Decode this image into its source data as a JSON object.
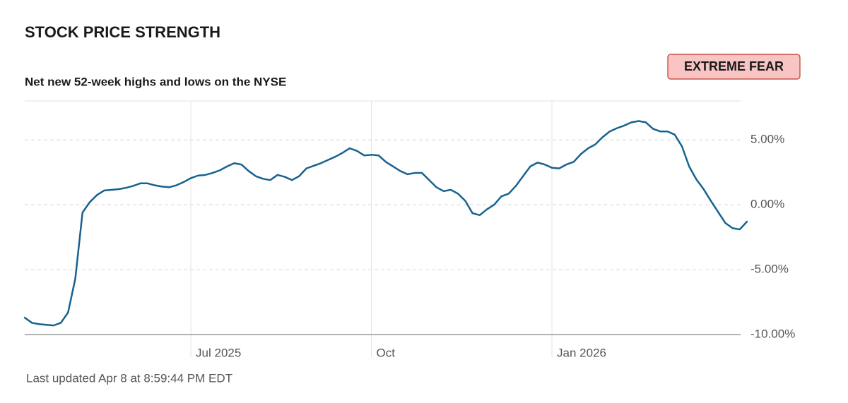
{
  "chart_data": {
    "type": "line",
    "title": "STOCK PRICE STRENGTH",
    "subtitle": "Net new 52-week highs and lows on the NYSE",
    "rating": "EXTREME FEAR",
    "note": "Last updated Apr 8 at 8:59:44 PM EDT",
    "color": "#18628f",
    "ylim": [
      -10,
      8
    ],
    "yticks": [
      {
        "value": -10,
        "label": "-10.00%"
      },
      {
        "value": -5,
        "label": "-5.00%"
      },
      {
        "value": 0,
        "label": "0.00%"
      },
      {
        "value": 5,
        "label": "5.00%"
      }
    ],
    "grid": true,
    "categories": [
      null,
      null,
      null,
      null,
      null,
      null,
      null,
      null,
      null,
      null,
      null,
      null,
      null,
      null,
      null,
      null,
      null,
      null,
      null,
      null,
      null,
      null,
      null,
      "Jul 2025",
      null,
      null,
      null,
      null,
      null,
      null,
      null,
      null,
      null,
      null,
      null,
      null,
      null,
      null,
      null,
      null,
      null,
      null,
      null,
      null,
      null,
      null,
      null,
      null,
      "Oct",
      null,
      null,
      null,
      null,
      null,
      null,
      null,
      null,
      null,
      null,
      null,
      null,
      null,
      null,
      null,
      null,
      null,
      null,
      null,
      null,
      null,
      null,
      null,
      null,
      "Jan 2026",
      null,
      null,
      null,
      null,
      null,
      null,
      null,
      null,
      null,
      null,
      null,
      null,
      null,
      null,
      null,
      null,
      null,
      null,
      null,
      null,
      null,
      null,
      null,
      null,
      null,
      null,
      null
    ],
    "values": [
      -8.7,
      -9.1,
      -9.2,
      -9.25,
      -9.3,
      -9.1,
      -8.3,
      -5.7,
      -0.6,
      0.2,
      0.75,
      1.1,
      1.15,
      1.2,
      1.3,
      1.45,
      1.65,
      1.65,
      1.5,
      1.4,
      1.35,
      1.5,
      1.75,
      2.05,
      2.25,
      2.3,
      2.45,
      2.65,
      2.95,
      3.2,
      3.1,
      2.6,
      2.2,
      2.0,
      1.9,
      2.3,
      2.15,
      1.9,
      2.2,
      2.8,
      3.0,
      3.2,
      3.45,
      3.7,
      4.0,
      4.35,
      4.15,
      3.8,
      3.85,
      3.8,
      3.3,
      2.95,
      2.6,
      2.35,
      2.45,
      2.45,
      1.9,
      1.35,
      1.05,
      1.15,
      0.85,
      0.3,
      -0.65,
      -0.8,
      -0.35,
      0.0,
      0.65,
      0.85,
      1.45,
      2.2,
      2.95,
      3.25,
      3.1,
      2.85,
      2.8,
      3.1,
      3.3,
      3.9,
      4.35,
      4.65,
      5.2,
      5.65,
      5.9,
      6.1,
      6.35,
      6.45,
      6.35,
      5.85,
      5.65,
      5.65,
      5.4,
      4.5,
      2.95,
      1.95,
      1.2,
      0.3,
      -0.55,
      -1.4,
      -1.8,
      -1.9,
      -1.3
    ]
  }
}
